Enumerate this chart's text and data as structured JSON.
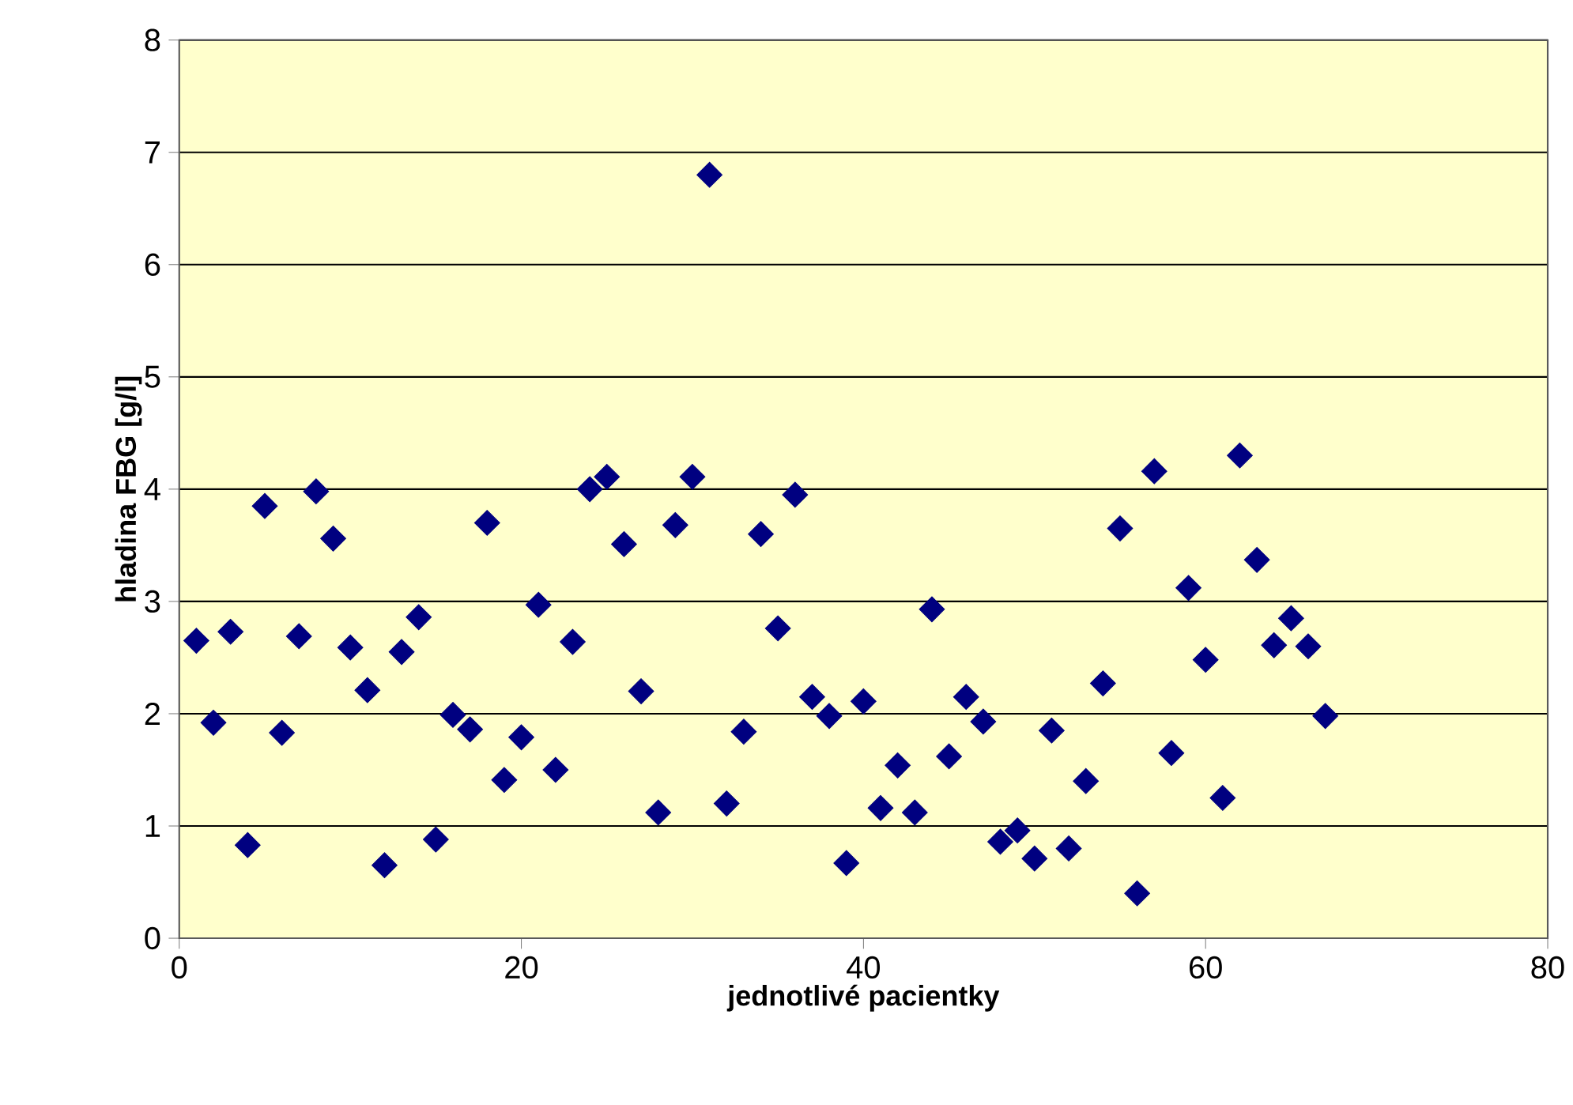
{
  "chart_data": {
    "type": "scatter",
    "xlabel": "jednotlivé pacientky",
    "ylabel": "hladina FBG  [g/l]",
    "x": [
      1,
      2,
      3,
      4,
      5,
      6,
      7,
      8,
      9,
      10,
      11,
      12,
      13,
      14,
      15,
      16,
      17,
      18,
      19,
      20,
      21,
      22,
      23,
      24,
      25,
      26,
      27,
      28,
      29,
      30,
      31,
      32,
      33,
      34,
      35,
      36,
      37,
      38,
      39,
      40,
      41,
      42,
      43,
      44,
      45,
      46,
      47,
      48,
      49,
      50,
      51,
      52,
      53,
      54,
      55,
      56,
      57,
      58,
      59,
      60,
      61,
      62,
      63,
      64,
      65,
      66,
      67
    ],
    "values": [
      2.65,
      1.92,
      2.73,
      0.83,
      3.85,
      1.83,
      2.69,
      3.98,
      3.56,
      2.59,
      2.21,
      0.65,
      2.55,
      2.86,
      0.88,
      1.99,
      1.86,
      3.7,
      1.41,
      1.79,
      2.97,
      1.5,
      2.64,
      4.0,
      4.11,
      3.51,
      2.2,
      1.12,
      3.68,
      4.11,
      6.8,
      1.2,
      1.84,
      3.6,
      2.76,
      3.95,
      2.15,
      1.98,
      0.67,
      2.11,
      1.16,
      1.54,
      1.12,
      2.93,
      1.62,
      2.15,
      1.93,
      0.86,
      0.96,
      0.71,
      1.85,
      0.8,
      1.4,
      2.27,
      3.65,
      0.4,
      4.16,
      1.65,
      3.12,
      2.48,
      1.25,
      4.3,
      3.37,
      2.61,
      2.85,
      2.6,
      1.98
    ],
    "color": "#000080",
    "marker": "diamond",
    "grid": "y",
    "xlim": [
      0,
      80
    ],
    "ylim": [
      0,
      8
    ],
    "xticks": [
      0,
      20,
      40,
      60,
      80
    ],
    "yticks": [
      0,
      1,
      2,
      3,
      4,
      5,
      6,
      7,
      8
    ]
  }
}
